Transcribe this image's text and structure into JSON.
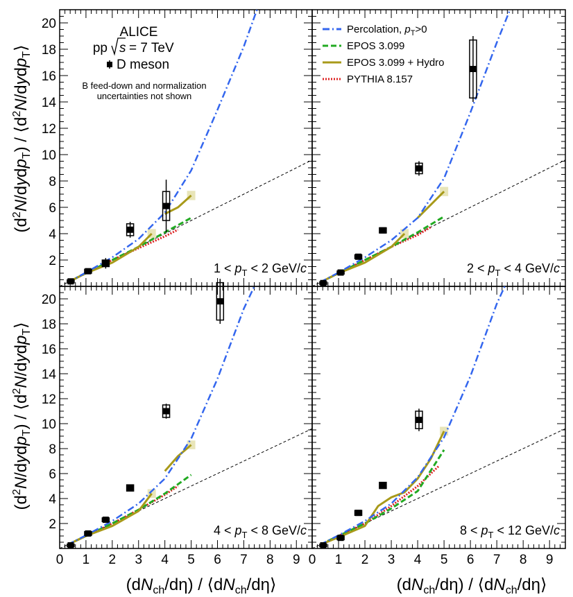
{
  "figure": {
    "experiment": "ALICE",
    "system_prefix": "pp",
    "system_sqrt": "s",
    "system_energy": "= 7 TeV",
    "marker_label": "D meson",
    "note_line1": "B feed-down and normalization",
    "note_line2": "uncertainties not shown",
    "xlabel": "(dNch/dη) / ⟨dNch/dη⟩",
    "ylabel": "(d²N/dydpT) / ⟨d²N/dydpT⟩"
  },
  "legend": [
    {
      "key": "percolation",
      "label": "Percolation, pT>0",
      "color": "#3366ee",
      "dash": "dashdot"
    },
    {
      "key": "epos",
      "label": "EPOS 3.099",
      "color": "#22aa22",
      "dash": "dash"
    },
    {
      "key": "hydro",
      "label": "EPOS 3.099 + Hydro",
      "color": "#a89a1a",
      "dash": "solid"
    },
    {
      "key": "pythia",
      "label": "PYTHIA 8.157",
      "color": "#dd2222",
      "dash": "dot"
    }
  ],
  "chart_data": [
    {
      "type": "scatter",
      "panel_label": "1 < pT < 2 GeV/c",
      "xlim": [
        0,
        9.6
      ],
      "ylim": [
        0,
        21
      ],
      "x_ticks": [
        "0",
        "1",
        "2",
        "3",
        "4",
        "5",
        "6",
        "7",
        "8",
        "9"
      ],
      "y_ticks": [
        "2",
        "4",
        "6",
        "8",
        "10",
        "12",
        "14",
        "16",
        "18",
        "20"
      ],
      "points": [
        {
          "x": 0.42,
          "y": 0.38,
          "err": 0.1,
          "syst": 0.12
        },
        {
          "x": 1.08,
          "y": 1.15,
          "err": 0.1,
          "syst": 0.15
        },
        {
          "x": 1.75,
          "y": 1.75,
          "err": 0.4,
          "syst": 0.25
        },
        {
          "x": 2.68,
          "y": 4.3,
          "err": 0.6,
          "syst": 0.45
        },
        {
          "x": 4.05,
          "y": 6.1,
          "err": 2.0,
          "syst": 1.1
        }
      ],
      "models": {
        "percolation": [
          [
            0.3,
            0.3
          ],
          [
            1,
            1.05
          ],
          [
            2,
            2.2
          ],
          [
            3,
            3.6
          ],
          [
            4,
            5.6
          ],
          [
            5,
            8.8
          ],
          [
            6,
            13.4
          ],
          [
            7,
            18.2
          ],
          [
            7.5,
            21
          ]
        ],
        "epos": [
          [
            0.3,
            0.3
          ],
          [
            1,
            1.0
          ],
          [
            2,
            2.0
          ],
          [
            3,
            3.0
          ],
          [
            4,
            4.1
          ],
          [
            5,
            5.2
          ]
        ],
        "hydro": [
          [
            0.3,
            0.3
          ],
          [
            1,
            1.0
          ],
          [
            2,
            1.8
          ],
          [
            3,
            3.0
          ],
          [
            3.5,
            4.0
          ]
        ],
        "hydro2": [
          [
            4.0,
            5.5
          ],
          [
            4.5,
            6.0
          ],
          [
            5,
            6.9
          ]
        ],
        "pythia": [
          [
            0.3,
            0.3
          ],
          [
            1,
            1.0
          ],
          [
            2,
            2.0
          ],
          [
            3,
            2.9
          ],
          [
            4,
            3.8
          ],
          [
            4.5,
            4.3
          ]
        ]
      }
    },
    {
      "type": "scatter",
      "panel_label": "2 < pT < 4 GeV/c",
      "xlim": [
        0,
        9.6
      ],
      "ylim": [
        0,
        21
      ],
      "x_ticks": [
        "0",
        "1",
        "2",
        "3",
        "4",
        "5",
        "6",
        "7",
        "8",
        "9"
      ],
      "y_ticks": [
        "2",
        "4",
        "6",
        "8",
        "10",
        "12",
        "14",
        "16",
        "18",
        "20"
      ],
      "points": [
        {
          "x": 0.42,
          "y": 0.25,
          "err": 0.08,
          "syst": 0.1
        },
        {
          "x": 1.08,
          "y": 1.05,
          "err": 0.1,
          "syst": 0.12
        },
        {
          "x": 1.75,
          "y": 2.25,
          "err": 0.1,
          "syst": 0.15
        },
        {
          "x": 2.68,
          "y": 4.25,
          "err": 0.15,
          "syst": 0.2
        },
        {
          "x": 4.05,
          "y": 8.95,
          "err": 0.55,
          "syst": 0.4
        },
        {
          "x": 6.1,
          "y": 16.5,
          "err": 2.5,
          "syst": 2.2
        }
      ],
      "models": {
        "percolation": [
          [
            0.3,
            0.3
          ],
          [
            1,
            1.05
          ],
          [
            2,
            2.2
          ],
          [
            3,
            3.5
          ],
          [
            4,
            5.2
          ],
          [
            5,
            8.2
          ],
          [
            6,
            13.2
          ],
          [
            7,
            18.5
          ],
          [
            7.5,
            21
          ]
        ],
        "epos": [
          [
            0.3,
            0.3
          ],
          [
            1,
            1.0
          ],
          [
            2,
            2.0
          ],
          [
            3,
            3.0
          ],
          [
            4,
            4.1
          ],
          [
            5,
            5.3
          ]
        ],
        "hydro": [
          [
            0.3,
            0.3
          ],
          [
            1,
            1.0
          ],
          [
            2,
            1.8
          ],
          [
            3,
            3.0
          ],
          [
            3.5,
            4.0
          ]
        ],
        "hydro2": [
          [
            4.0,
            5.2
          ],
          [
            4.5,
            6.2
          ],
          [
            5,
            7.2
          ]
        ],
        "pythia": [
          [
            0.3,
            0.3
          ],
          [
            1,
            1.0
          ],
          [
            2,
            2.0
          ],
          [
            3,
            3.0
          ],
          [
            4,
            3.9
          ],
          [
            4.5,
            4.5
          ]
        ]
      }
    },
    {
      "type": "scatter",
      "panel_label": "4 < pT < 8 GeV/c",
      "xlim": [
        0,
        9.6
      ],
      "ylim": [
        0,
        21
      ],
      "x_ticks": [
        "0",
        "1",
        "2",
        "3",
        "4",
        "5",
        "6",
        "7",
        "8",
        "9"
      ],
      "y_ticks": [
        "2",
        "4",
        "6",
        "8",
        "10",
        "12",
        "14",
        "16",
        "18",
        "20"
      ],
      "points": [
        {
          "x": 0.42,
          "y": 0.25,
          "err": 0.08,
          "syst": 0.1
        },
        {
          "x": 1.08,
          "y": 1.2,
          "err": 0.1,
          "syst": 0.15
        },
        {
          "x": 1.75,
          "y": 2.3,
          "err": 0.15,
          "syst": 0.15
        },
        {
          "x": 2.68,
          "y": 4.85,
          "err": 0.2,
          "syst": 0.25
        },
        {
          "x": 4.05,
          "y": 11.0,
          "err": 0.6,
          "syst": 0.5
        },
        {
          "x": 6.1,
          "y": 19.8,
          "err": 1.8,
          "syst": 1.5
        }
      ],
      "models": {
        "percolation": [
          [
            0.3,
            0.3
          ],
          [
            1,
            1.05
          ],
          [
            2,
            2.2
          ],
          [
            3,
            3.6
          ],
          [
            4,
            5.6
          ],
          [
            5,
            8.8
          ],
          [
            6,
            13.6
          ],
          [
            7,
            19.2
          ],
          [
            7.4,
            21
          ]
        ],
        "epos": [
          [
            0.3,
            0.3
          ],
          [
            1,
            1.0
          ],
          [
            2,
            2.0
          ],
          [
            3,
            3.1
          ],
          [
            4,
            4.4
          ],
          [
            5,
            5.9
          ]
        ],
        "hydro": [
          [
            0.3,
            0.3
          ],
          [
            1,
            1.0
          ],
          [
            2,
            1.8
          ],
          [
            3,
            3.0
          ],
          [
            3.5,
            4.4
          ]
        ],
        "hydro2": [
          [
            4.0,
            6.2
          ],
          [
            4.5,
            7.4
          ],
          [
            5,
            8.3
          ]
        ],
        "pythia": [
          [
            0.3,
            0.3
          ],
          [
            1,
            1.0
          ],
          [
            2,
            2.0
          ],
          [
            3,
            3.1
          ],
          [
            4,
            4.3
          ],
          [
            4.5,
            5.0
          ]
        ]
      }
    },
    {
      "type": "scatter",
      "panel_label": "8 < pT < 12 GeV/c",
      "xlim": [
        0,
        9.6
      ],
      "ylim": [
        0,
        21
      ],
      "x_ticks": [
        "0",
        "1",
        "2",
        "3",
        "4",
        "5",
        "6",
        "7",
        "8",
        "9"
      ],
      "y_ticks": [
        "2",
        "4",
        "6",
        "8",
        "10",
        "12",
        "14",
        "16",
        "18",
        "20"
      ],
      "points": [
        {
          "x": 0.42,
          "y": 0.25,
          "err": 0.08,
          "syst": 0.1
        },
        {
          "x": 1.08,
          "y": 0.85,
          "err": 0.15,
          "syst": 0.15
        },
        {
          "x": 1.75,
          "y": 2.85,
          "err": 0.15,
          "syst": 0.2
        },
        {
          "x": 2.68,
          "y": 5.05,
          "err": 0.25,
          "syst": 0.25
        },
        {
          "x": 4.05,
          "y": 10.3,
          "err": 0.9,
          "syst": 0.7
        }
      ],
      "models": {
        "percolation": [
          [
            0.3,
            0.3
          ],
          [
            1,
            1.05
          ],
          [
            2,
            2.2
          ],
          [
            3,
            3.6
          ],
          [
            4,
            5.7
          ],
          [
            5,
            8.9
          ],
          [
            6,
            13.8
          ],
          [
            7,
            19.6
          ],
          [
            7.3,
            21
          ]
        ],
        "epos": [
          [
            0.3,
            0.3
          ],
          [
            1,
            1.0
          ],
          [
            2,
            2.0
          ],
          [
            3,
            3.2
          ],
          [
            4,
            4.6
          ],
          [
            5,
            7.9
          ]
        ],
        "hydro": [
          [
            0.3,
            0.3
          ],
          [
            1,
            0.9
          ],
          [
            2,
            1.8
          ],
          [
            2.5,
            3.4
          ],
          [
            3,
            4.1
          ],
          [
            3.5,
            4.5
          ],
          [
            4,
            5.6
          ],
          [
            4.5,
            7.2
          ],
          [
            5,
            9.4
          ]
        ],
        "hydro2": [],
        "pythia": [
          [
            0.3,
            0.3
          ],
          [
            1,
            1.0
          ],
          [
            2,
            2.0
          ],
          [
            3,
            3.4
          ],
          [
            4,
            5.0
          ],
          [
            4.8,
            6.6
          ]
        ]
      }
    }
  ]
}
